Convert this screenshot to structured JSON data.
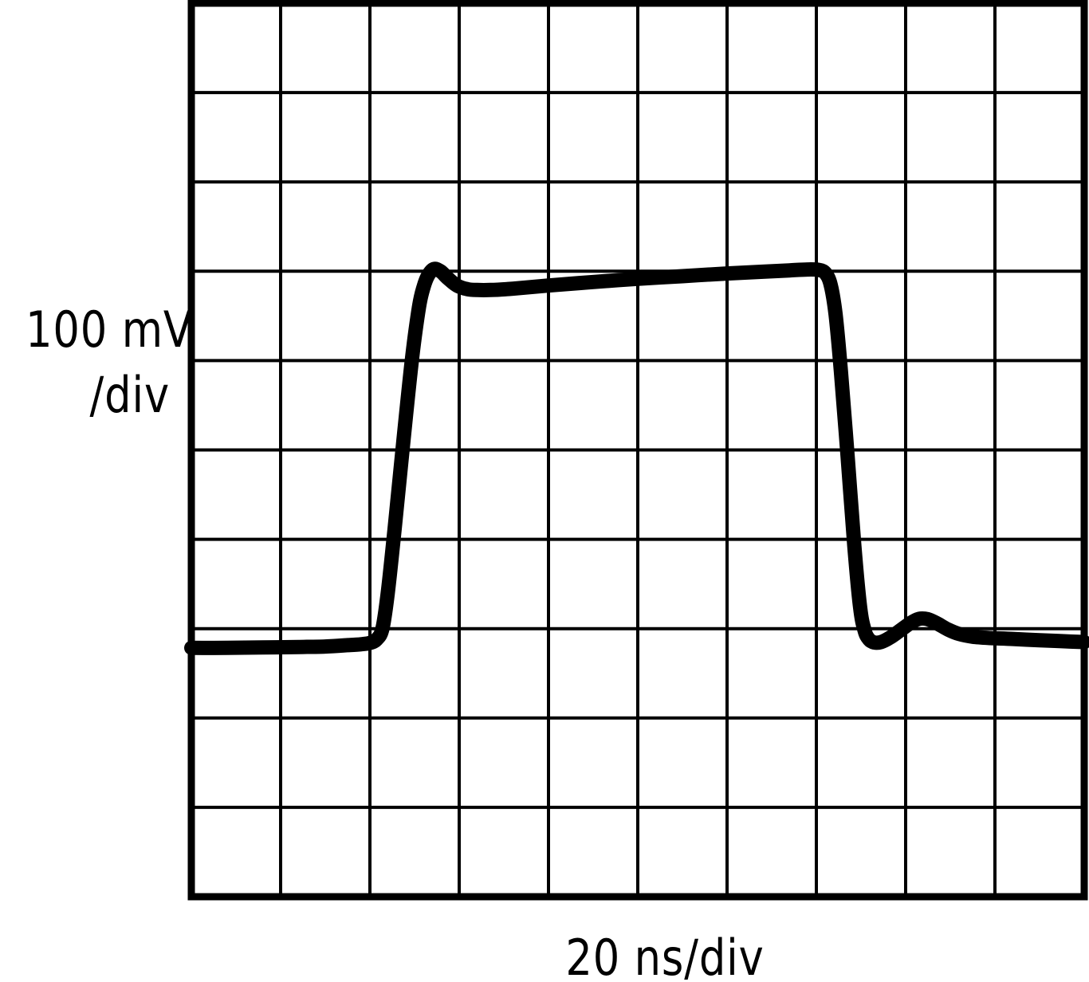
{
  "figure": {
    "background_color": "#ffffff",
    "grid_color": "#000000",
    "trace_color": "#000000"
  },
  "labels": {
    "y_scale_line1": "100 mV",
    "y_scale_line2": "/div",
    "x_scale": "20 ns/div"
  },
  "chart_data": {
    "type": "line",
    "title": "",
    "xlabel": "20 ns/div",
    "ylabel": "100 mV/div",
    "x_units": "ns",
    "y_units": "mV",
    "x_per_division": 20,
    "y_per_division": 100,
    "divisions_x": 10,
    "divisions_y": 10,
    "x_range": [
      0,
      200
    ],
    "grid": "on",
    "legend": "none",
    "baseline_divisions_from_top": 7.2,
    "description": "Oscilloscope pulse-response trace: flat baseline near 0 mV, fast rising edge at ~42 ns to ~420 mV with slight overshoot then settle to ~400 mV, gently up-tilted flat top reaching ~422 mV, fast falling edge at ~143 ns with small undershoot and a recovery bump (~31 mV) near 163 ns, settling back toward ~5 mV.",
    "points_ns_mV": [
      [
        0,
        -1.5
      ],
      [
        8,
        -1.5
      ],
      [
        16,
        -1
      ],
      [
        24,
        -0.5
      ],
      [
        30,
        0
      ],
      [
        35,
        1.5
      ],
      [
        38,
        2.5
      ],
      [
        40,
        4
      ],
      [
        41.5,
        8
      ],
      [
        42.8,
        20
      ],
      [
        44,
        60
      ],
      [
        45.5,
        130
      ],
      [
        47.5,
        230
      ],
      [
        49.5,
        325
      ],
      [
        51,
        380
      ],
      [
        52,
        402
      ],
      [
        53,
        415
      ],
      [
        54.3,
        422.5
      ],
      [
        55.8,
        420
      ],
      [
        57.5,
        412
      ],
      [
        59.5,
        404
      ],
      [
        61.8,
        400
      ],
      [
        64,
        399
      ],
      [
        67,
        399
      ],
      [
        72,
        400.5
      ],
      [
        80,
        404
      ],
      [
        90,
        408
      ],
      [
        100,
        411.5
      ],
      [
        110,
        414.5
      ],
      [
        120,
        417.5
      ],
      [
        128,
        419.5
      ],
      [
        134,
        421
      ],
      [
        138,
        422
      ],
      [
        140.5,
        421.5
      ],
      [
        142,
        418
      ],
      [
        143.2,
        405
      ],
      [
        144.3,
        372
      ],
      [
        145.5,
        308
      ],
      [
        147,
        213
      ],
      [
        148.5,
        113
      ],
      [
        149.8,
        44
      ],
      [
        150.8,
        18
      ],
      [
        151.8,
        8
      ],
      [
        153,
        4.5
      ],
      [
        154.5,
        5
      ],
      [
        156.5,
        10
      ],
      [
        158.5,
        17
      ],
      [
        161,
        26
      ],
      [
        163,
        31
      ],
      [
        165,
        30.5
      ],
      [
        167,
        26
      ],
      [
        169.5,
        19
      ],
      [
        172,
        14
      ],
      [
        175,
        11
      ],
      [
        179,
        9.5
      ],
      [
        184,
        8.5
      ],
      [
        190,
        7
      ],
      [
        195,
        6
      ],
      [
        200,
        5
      ]
    ]
  }
}
